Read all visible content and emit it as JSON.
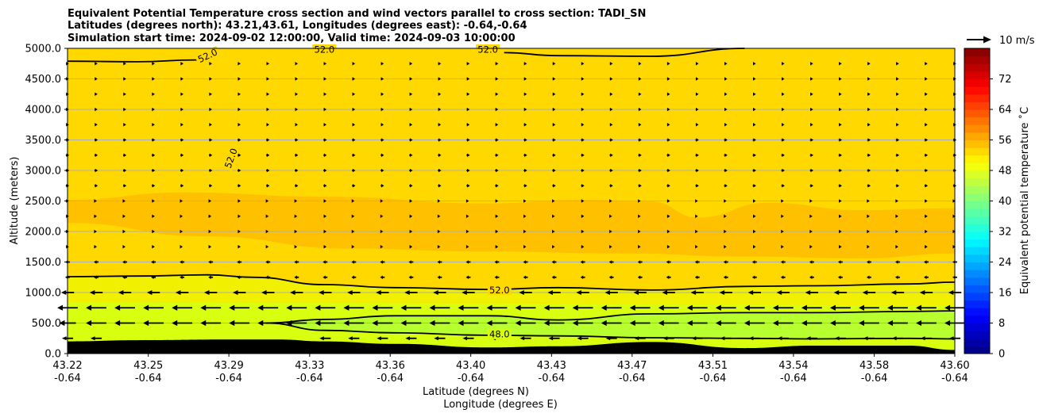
{
  "chart_data": {
    "type": "contour",
    "title_lines": [
      "Equivalent Potential Temperature cross section and wind vectors parallel to cross section: TADI_SN",
      "Latitudes (degrees north): 43.21,43.61, Longitudes (degrees east): -0.64,-0.64",
      "Simulation start time: 2024-09-02 12:00:00, Valid time: 2024-09-03 10:00:00"
    ],
    "ylabel": "Altitude (meters)",
    "xlabel_lat": "Latitude (degrees N)",
    "xlabel_lon": "Longitude (degrees E)",
    "ylim": [
      0,
      5000
    ],
    "yticks": [
      "0.0",
      "500.0",
      "1000.0",
      "1500.0",
      "2000.0",
      "2500.0",
      "3000.0",
      "3500.0",
      "4000.0",
      "4500.0",
      "5000.0"
    ],
    "xtick_lats": [
      "43.22",
      "43.25",
      "43.29",
      "43.33",
      "43.36",
      "43.40",
      "43.43",
      "43.47",
      "43.51",
      "43.54",
      "43.58",
      "43.60"
    ],
    "xtick_lons": [
      "-0.64",
      "-0.64",
      "-0.64",
      "-0.64",
      "-0.64",
      "-0.64",
      "-0.64",
      "-0.64",
      "-0.64",
      "-0.64",
      "-0.64",
      "-0.64"
    ],
    "grid": "horizontal",
    "colorbar": {
      "label": "Equivalent potential temperature ˚C",
      "ticks": [
        "0",
        "8",
        "16",
        "24",
        "32",
        "40",
        "48",
        "56",
        "64",
        "72"
      ],
      "range": [
        0,
        80
      ],
      "colormap": "jet"
    },
    "quiver_key": "10 m/s",
    "contour_labels": [
      {
        "text": "52.0",
        "x": 43.28,
        "y": 4880
      },
      {
        "text": "52.0",
        "x": 43.33,
        "y": 4980
      },
      {
        "text": "52.0",
        "x": 43.4,
        "y": 4980
      },
      {
        "text": "52.0",
        "x": 43.29,
        "y": 3200
      },
      {
        "text": "52.0",
        "x": 43.405,
        "y": 1040
      },
      {
        "text": "48.0",
        "x": 43.405,
        "y": 320
      }
    ],
    "fill_regions": [
      {
        "range": "52-54",
        "color": "#ffd800"
      },
      {
        "range": "54-56",
        "color": "#ffc000"
      },
      {
        "range": "48-50",
        "color": "#f0f000"
      },
      {
        "range": "46-48",
        "color": "#d8ff10"
      },
      {
        "range": "44-46",
        "color": "#b8ff30"
      },
      {
        "range": "terrain",
        "color": "#000000"
      }
    ],
    "contours": [
      {
        "level": 52,
        "x": [
          43.22,
          43.25,
          43.28,
          43.3,
          43.33,
          43.36,
          43.4,
          43.43,
          43.47,
          43.51,
          43.54,
          43.58,
          43.6
        ],
        "y": [
          1260,
          1270,
          1290,
          1250,
          1130,
          1080,
          1050,
          1080,
          1040,
          1100,
          1110,
          1140,
          1170
        ]
      },
      {
        "level": 48,
        "x": [
          43.305,
          43.33,
          43.36,
          43.4,
          43.43,
          43.47,
          43.51,
          43.54,
          43.58,
          43.6
        ],
        "y": [
          500,
          380,
          340,
          300,
          290,
          260,
          250,
          240,
          250,
          240
        ]
      },
      {
        "level": 48,
        "x": [
          43.305,
          43.33,
          43.36,
          43.4,
          43.43,
          43.47,
          43.51,
          43.54,
          43.58,
          43.6
        ],
        "y": [
          500,
          560,
          620,
          620,
          550,
          650,
          670,
          670,
          690,
          700
        ]
      },
      {
        "level": 52,
        "x": [
          43.22,
          43.25,
          43.275,
          43.28
        ],
        "y": [
          4790,
          4780,
          4810,
          4880
        ]
      },
      {
        "level": 52,
        "x": [
          43.407,
          43.43,
          43.47,
          43.51
        ],
        "y": [
          4930,
          4880,
          4870,
          5000
        ]
      }
    ],
    "terrain_profile": {
      "x": [
        43.22,
        43.25,
        43.29,
        43.31,
        43.33,
        43.36,
        43.4,
        43.43,
        43.47,
        43.51,
        43.54,
        43.58,
        43.6
      ],
      "y": [
        200,
        220,
        230,
        230,
        200,
        160,
        100,
        120,
        190,
        90,
        130,
        130,
        60
      ]
    }
  }
}
